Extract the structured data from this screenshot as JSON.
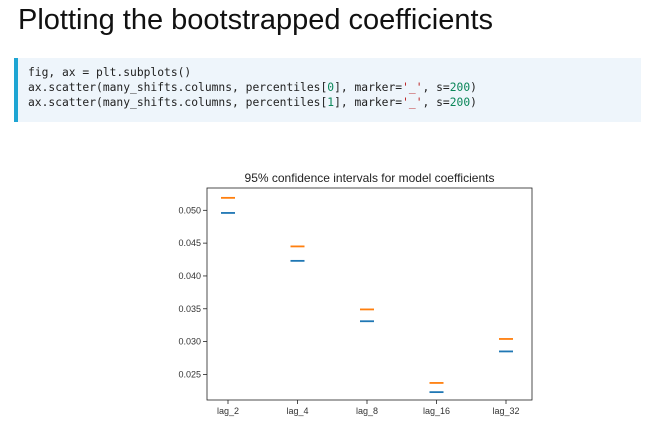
{
  "notebook": {
    "heading": "Plotting the bootstrapped coefficients",
    "code_lines": [
      {
        "parts": [
          {
            "t": "fig, ax = plt.subplots()",
            "c": ""
          }
        ]
      },
      {
        "parts": [
          {
            "t": "ax.scatter(many_shifts.columns, percentiles[",
            "c": ""
          },
          {
            "t": "0",
            "c": "num"
          },
          {
            "t": "], marker=",
            "c": ""
          },
          {
            "t": "'_'",
            "c": "str"
          },
          {
            "t": ", s=",
            "c": ""
          },
          {
            "t": "200",
            "c": "num"
          },
          {
            "t": ")",
            "c": ""
          }
        ]
      },
      {
        "parts": [
          {
            "t": "ax.scatter(many_shifts.columns, percentiles[",
            "c": ""
          },
          {
            "t": "1",
            "c": "num"
          },
          {
            "t": "], marker=",
            "c": ""
          },
          {
            "t": "'_'",
            "c": "str"
          },
          {
            "t": ", s=",
            "c": ""
          },
          {
            "t": "200",
            "c": "num"
          },
          {
            "t": ")",
            "c": ""
          }
        ]
      }
    ]
  },
  "chart_data": {
    "type": "scatter",
    "title": "95% confidence intervals for model coefficients",
    "xlabel": "",
    "ylabel": "",
    "categories": [
      "lag_2",
      "lag_4",
      "lag_8",
      "lag_16",
      "lag_32"
    ],
    "ylim": [
      0.0211,
      0.0534
    ],
    "yticks": [
      "0.025",
      "0.030",
      "0.035",
      "0.040",
      "0.045",
      "0.050"
    ],
    "series": [
      {
        "values": [
          0.0496,
          0.0423,
          0.0331,
          0.0223,
          0.0285
        ],
        "color": "#1f77b4",
        "marker": "_"
      },
      {
        "values": [
          0.0519,
          0.0445,
          0.0349,
          0.0237,
          0.0304
        ],
        "color": "#ff7f0e",
        "marker": "_"
      }
    ],
    "grid": false,
    "legend": "none"
  }
}
